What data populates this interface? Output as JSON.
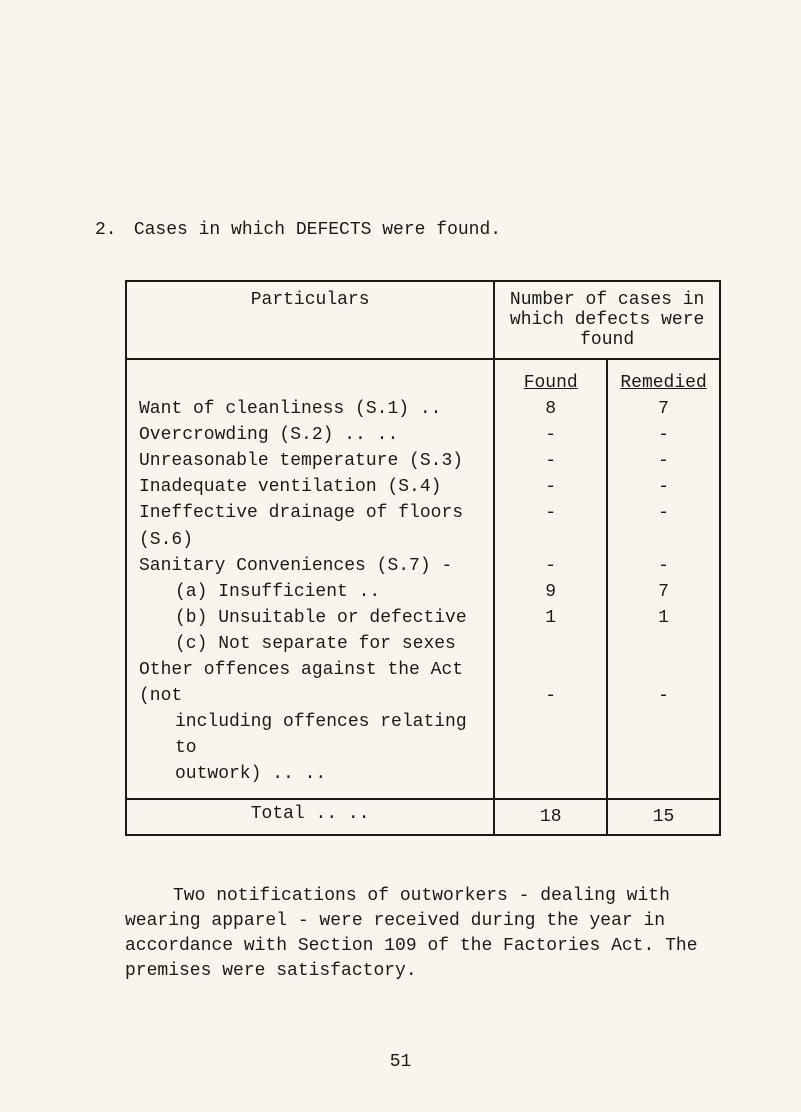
{
  "heading": {
    "number": "2.",
    "text": "Cases in which DEFECTS were found."
  },
  "table": {
    "header_particulars": "Particulars",
    "header_cases": "Number of cases in which defects were found",
    "sub_found": "Found",
    "sub_remedied": "Remedied",
    "rows": [
      {
        "label": "Want of cleanliness (S.1)    ..",
        "found": "8",
        "remedied": "7"
      },
      {
        "label": "Overcrowding (S.2)    ..    ..",
        "found": "-",
        "remedied": "-"
      },
      {
        "label": "Unreasonable temperature (S.3)",
        "found": "-",
        "remedied": "-"
      },
      {
        "label": "Inadequate ventilation (S.4)",
        "found": "-",
        "remedied": "-"
      },
      {
        "label": "Ineffective drainage of floors (S.6)",
        "found": "-",
        "remedied": "-"
      },
      {
        "label": "Sanitary Conveniences (S.7) -",
        "found": "",
        "remedied": ""
      },
      {
        "label": "(a)  Insufficient         ..",
        "found": "-",
        "remedied": "-",
        "indent": true
      },
      {
        "label": "(b)  Unsuitable or defective",
        "found": "9",
        "remedied": "7",
        "indent": true
      },
      {
        "label": "(c)  Not separate for sexes",
        "found": "1",
        "remedied": "1",
        "indent": true
      },
      {
        "label": "Other offences against the Act (not",
        "found": "",
        "remedied": ""
      },
      {
        "label": "including offences relating to",
        "found": "",
        "remedied": "",
        "indent": true
      },
      {
        "label": "outwork)          ..    ..",
        "found": "-",
        "remedied": "-",
        "indent": true
      }
    ],
    "total_label": "Total          ..    ..",
    "total_found": "18",
    "total_remedied": "15"
  },
  "paragraph": "Two notifications of outworkers - dealing with wearing apparel - were received during the year in accordance with Section 109 of the Factories Act.  The premises were satisfactory.",
  "page_number": "51"
}
